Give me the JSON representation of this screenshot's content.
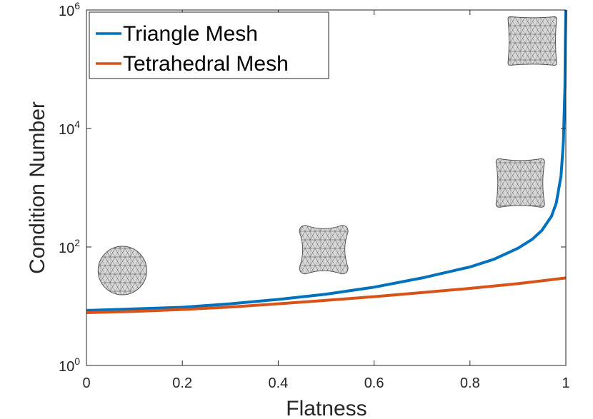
{
  "chart_data": {
    "type": "line",
    "xlabel": "Flatness",
    "ylabel": "Condition Number",
    "xlim": [
      0,
      1
    ],
    "ylim": [
      1,
      1000000
    ],
    "yscale": "log",
    "grid": false,
    "legend_position": "top-left",
    "x_ticks": [
      {
        "value": 0,
        "label": "0"
      },
      {
        "value": 0.2,
        "label": "0.2"
      },
      {
        "value": 0.4,
        "label": "0.4"
      },
      {
        "value": 0.6,
        "label": "0.6"
      },
      {
        "value": 0.8,
        "label": "0.8"
      },
      {
        "value": 1,
        "label": "1"
      }
    ],
    "y_ticks": [
      {
        "value": 1,
        "base": "10",
        "exp": "0"
      },
      {
        "value": 100,
        "base": "10",
        "exp": "2"
      },
      {
        "value": 10000,
        "base": "10",
        "exp": "4"
      },
      {
        "value": 1000000,
        "base": "10",
        "exp": "6"
      }
    ],
    "series": [
      {
        "name": "Triangle Mesh",
        "color": "#0072BD",
        "x": [
          0,
          0.1,
          0.2,
          0.3,
          0.4,
          0.5,
          0.6,
          0.7,
          0.8,
          0.85,
          0.9,
          0.93,
          0.95,
          0.97,
          0.98,
          0.99,
          0.995,
          0.998,
          0.999,
          1.0
        ],
        "y": [
          8.5,
          9,
          9.6,
          11,
          13,
          16,
          21,
          30,
          46,
          62,
          95,
          135,
          190,
          330,
          550,
          1600,
          6000,
          50000,
          300000,
          1000000
        ]
      },
      {
        "name": "Tetrahedral Mesh",
        "color": "#D95319",
        "x": [
          0,
          0.1,
          0.2,
          0.3,
          0.4,
          0.5,
          0.6,
          0.7,
          0.8,
          0.9,
          1.0
        ],
        "y": [
          7.8,
          8.2,
          8.8,
          9.7,
          11,
          12.6,
          14.5,
          17,
          20,
          24,
          30
        ]
      }
    ],
    "annotations": [
      {
        "name": "sphere-mesh-thumbnail",
        "shape": "sphere",
        "at_x": 0.075,
        "at_y": 40
      },
      {
        "name": "rounded-mesh-thumbnail",
        "shape": "rounded",
        "at_x": 0.495,
        "at_y": 90
      },
      {
        "name": "flat-mesh-thumbnail",
        "shape": "flat",
        "at_x": 0.905,
        "at_y": 1200
      },
      {
        "name": "cube-mesh-thumbnail",
        "shape": "cube",
        "at_x": 0.93,
        "at_y": 300000
      }
    ]
  }
}
